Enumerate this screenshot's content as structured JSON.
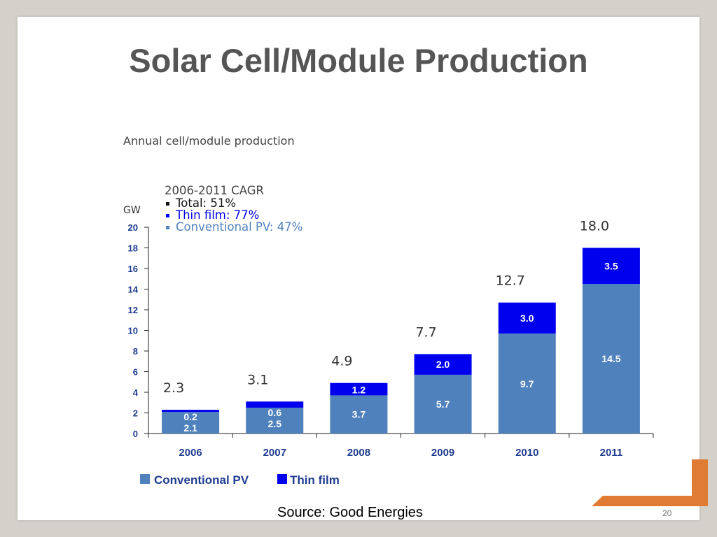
{
  "slide": {
    "title": "Solar Cell/Module Production",
    "source": "Source:  Good Energies",
    "page_number": "20",
    "accent_color": "#e07b33"
  },
  "chart_data": {
    "type": "bar",
    "stacked": true,
    "subtitle": "Annual cell/module production",
    "yunit": "GW",
    "ylim": [
      0,
      20
    ],
    "yticks": [
      0,
      2,
      4,
      6,
      8,
      10,
      12,
      14,
      16,
      18,
      20
    ],
    "categories": [
      "2006",
      "2007",
      "2008",
      "2009",
      "2010",
      "2011"
    ],
    "series": [
      {
        "name": "Conventional PV",
        "color": "#4f81bd",
        "values": [
          2.1,
          2.5,
          3.7,
          5.7,
          9.7,
          14.5
        ]
      },
      {
        "name": "Thin film",
        "color": "#0000ee",
        "values": [
          0.2,
          0.6,
          1.2,
          2.0,
          3.0,
          3.5
        ]
      }
    ],
    "totals": [
      "2.3",
      "3.1",
      "4.9",
      "7.7",
      "12.7",
      "18.0"
    ],
    "annotation": {
      "heading": "2006-2011 CAGR",
      "items": [
        {
          "text": "Total: 51%",
          "color": "#111111"
        },
        {
          "text": "Thin film: 77%",
          "color": "#0000ee"
        },
        {
          "text": "Conventional PV: 47%",
          "color": "#4f81bd"
        }
      ]
    },
    "legend_position": "bottom-left",
    "grid": false
  }
}
